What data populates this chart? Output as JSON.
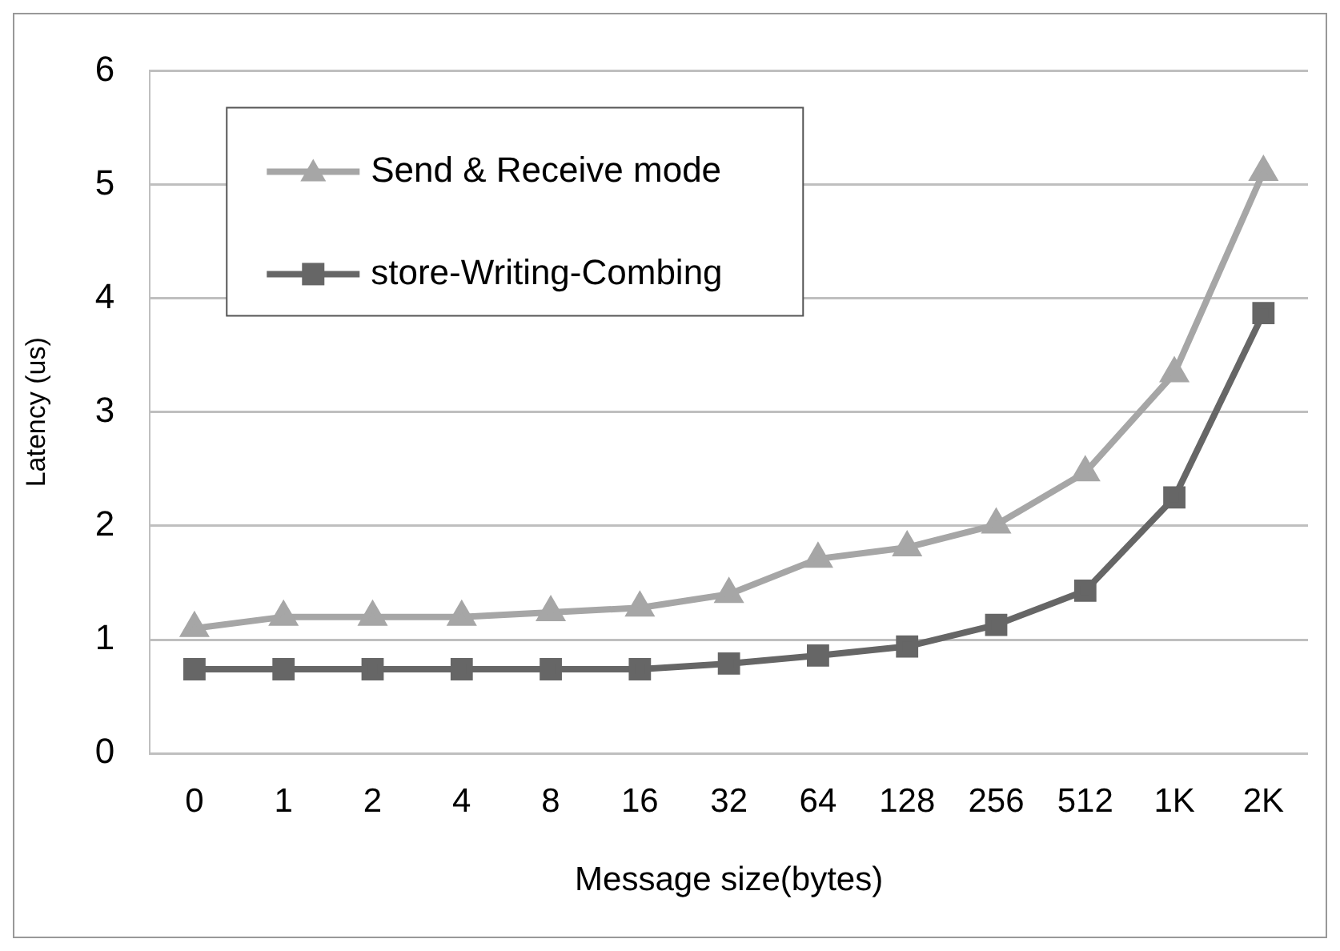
{
  "chart_data": {
    "type": "line",
    "xlabel": "Message size(bytes)",
    "ylabel": "Latency (us)",
    "categories": [
      "0",
      "1",
      "2",
      "4",
      "8",
      "16",
      "32",
      "64",
      "128",
      "256",
      "512",
      "1K",
      "2K"
    ],
    "series": [
      {
        "name": "Send & Receive mode",
        "color": "#a6a6a6",
        "marker": "triangle",
        "values": [
          1.1,
          1.2,
          1.2,
          1.2,
          1.24,
          1.28,
          1.4,
          1.71,
          1.81,
          2.01,
          2.47,
          3.34,
          5.11
        ]
      },
      {
        "name": "store-Writing-Combing",
        "color": "#666666",
        "marker": "square",
        "values": [
          0.74,
          0.74,
          0.74,
          0.74,
          0.74,
          0.74,
          0.79,
          0.86,
          0.94,
          1.13,
          1.43,
          2.25,
          3.87
        ]
      }
    ],
    "ylim": [
      0,
      6
    ],
    "yticks": [
      0,
      1,
      2,
      3,
      4,
      5,
      6
    ],
    "grid": "y",
    "legend": "top left"
  }
}
